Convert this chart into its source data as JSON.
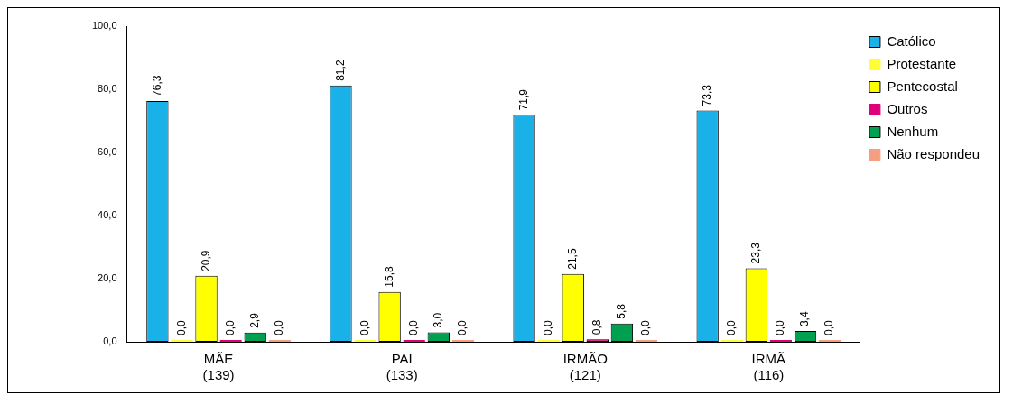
{
  "chart_data": {
    "type": "bar",
    "categories": [
      "MÃE\n(139)",
      "PAI\n(133)",
      "IRMÃO\n(121)",
      "IRMÃ\n(116)"
    ],
    "ylim": [
      0,
      100
    ],
    "yticks": [
      {
        "value": 0,
        "label": "0,0"
      },
      {
        "value": 20,
        "label": "20,0"
      },
      {
        "value": 40,
        "label": "40,0"
      },
      {
        "value": 60,
        "label": "60,0"
      },
      {
        "value": 80,
        "label": "80,0"
      },
      {
        "value": 100,
        "label": "100,0"
      }
    ],
    "grid": false,
    "legend": "top right",
    "series": [
      {
        "name": "Católico",
        "color": "#1ab0e8",
        "values": [
          76.3,
          81.2,
          71.9,
          73.3
        ],
        "value_labels": [
          "76,3",
          "81,2",
          "71,9",
          "73,3"
        ]
      },
      {
        "name": "Protestante",
        "color": "#ffff33",
        "values": [
          0,
          0,
          0,
          0
        ],
        "value_labels": [
          "0,0",
          "0,0",
          "0,0",
          "0,0"
        ]
      },
      {
        "name": "Pentecostal",
        "color": "#ffff00",
        "values": [
          20.9,
          15.8,
          21.5,
          23.3
        ],
        "value_labels": [
          "20,9",
          "15,8",
          "21,5",
          "23,3"
        ]
      },
      {
        "name": "Outros",
        "color": "#e0007a",
        "values": [
          0,
          0,
          0.8,
          0
        ],
        "value_labels": [
          "0,0",
          "0,0",
          "0,8",
          "0,0"
        ]
      },
      {
        "name": "Nenhum",
        "color": "#00a050",
        "values": [
          2.9,
          3.0,
          5.8,
          3.4
        ],
        "value_labels": [
          "2,9",
          "3,0",
          "5,8",
          "3,4"
        ]
      },
      {
        "name": "Não respondeu",
        "color": "#f4a080",
        "values": [
          0,
          0,
          0,
          0
        ],
        "value_labels": [
          "0,0",
          "0,0",
          "0,0",
          "0,0"
        ]
      }
    ]
  }
}
